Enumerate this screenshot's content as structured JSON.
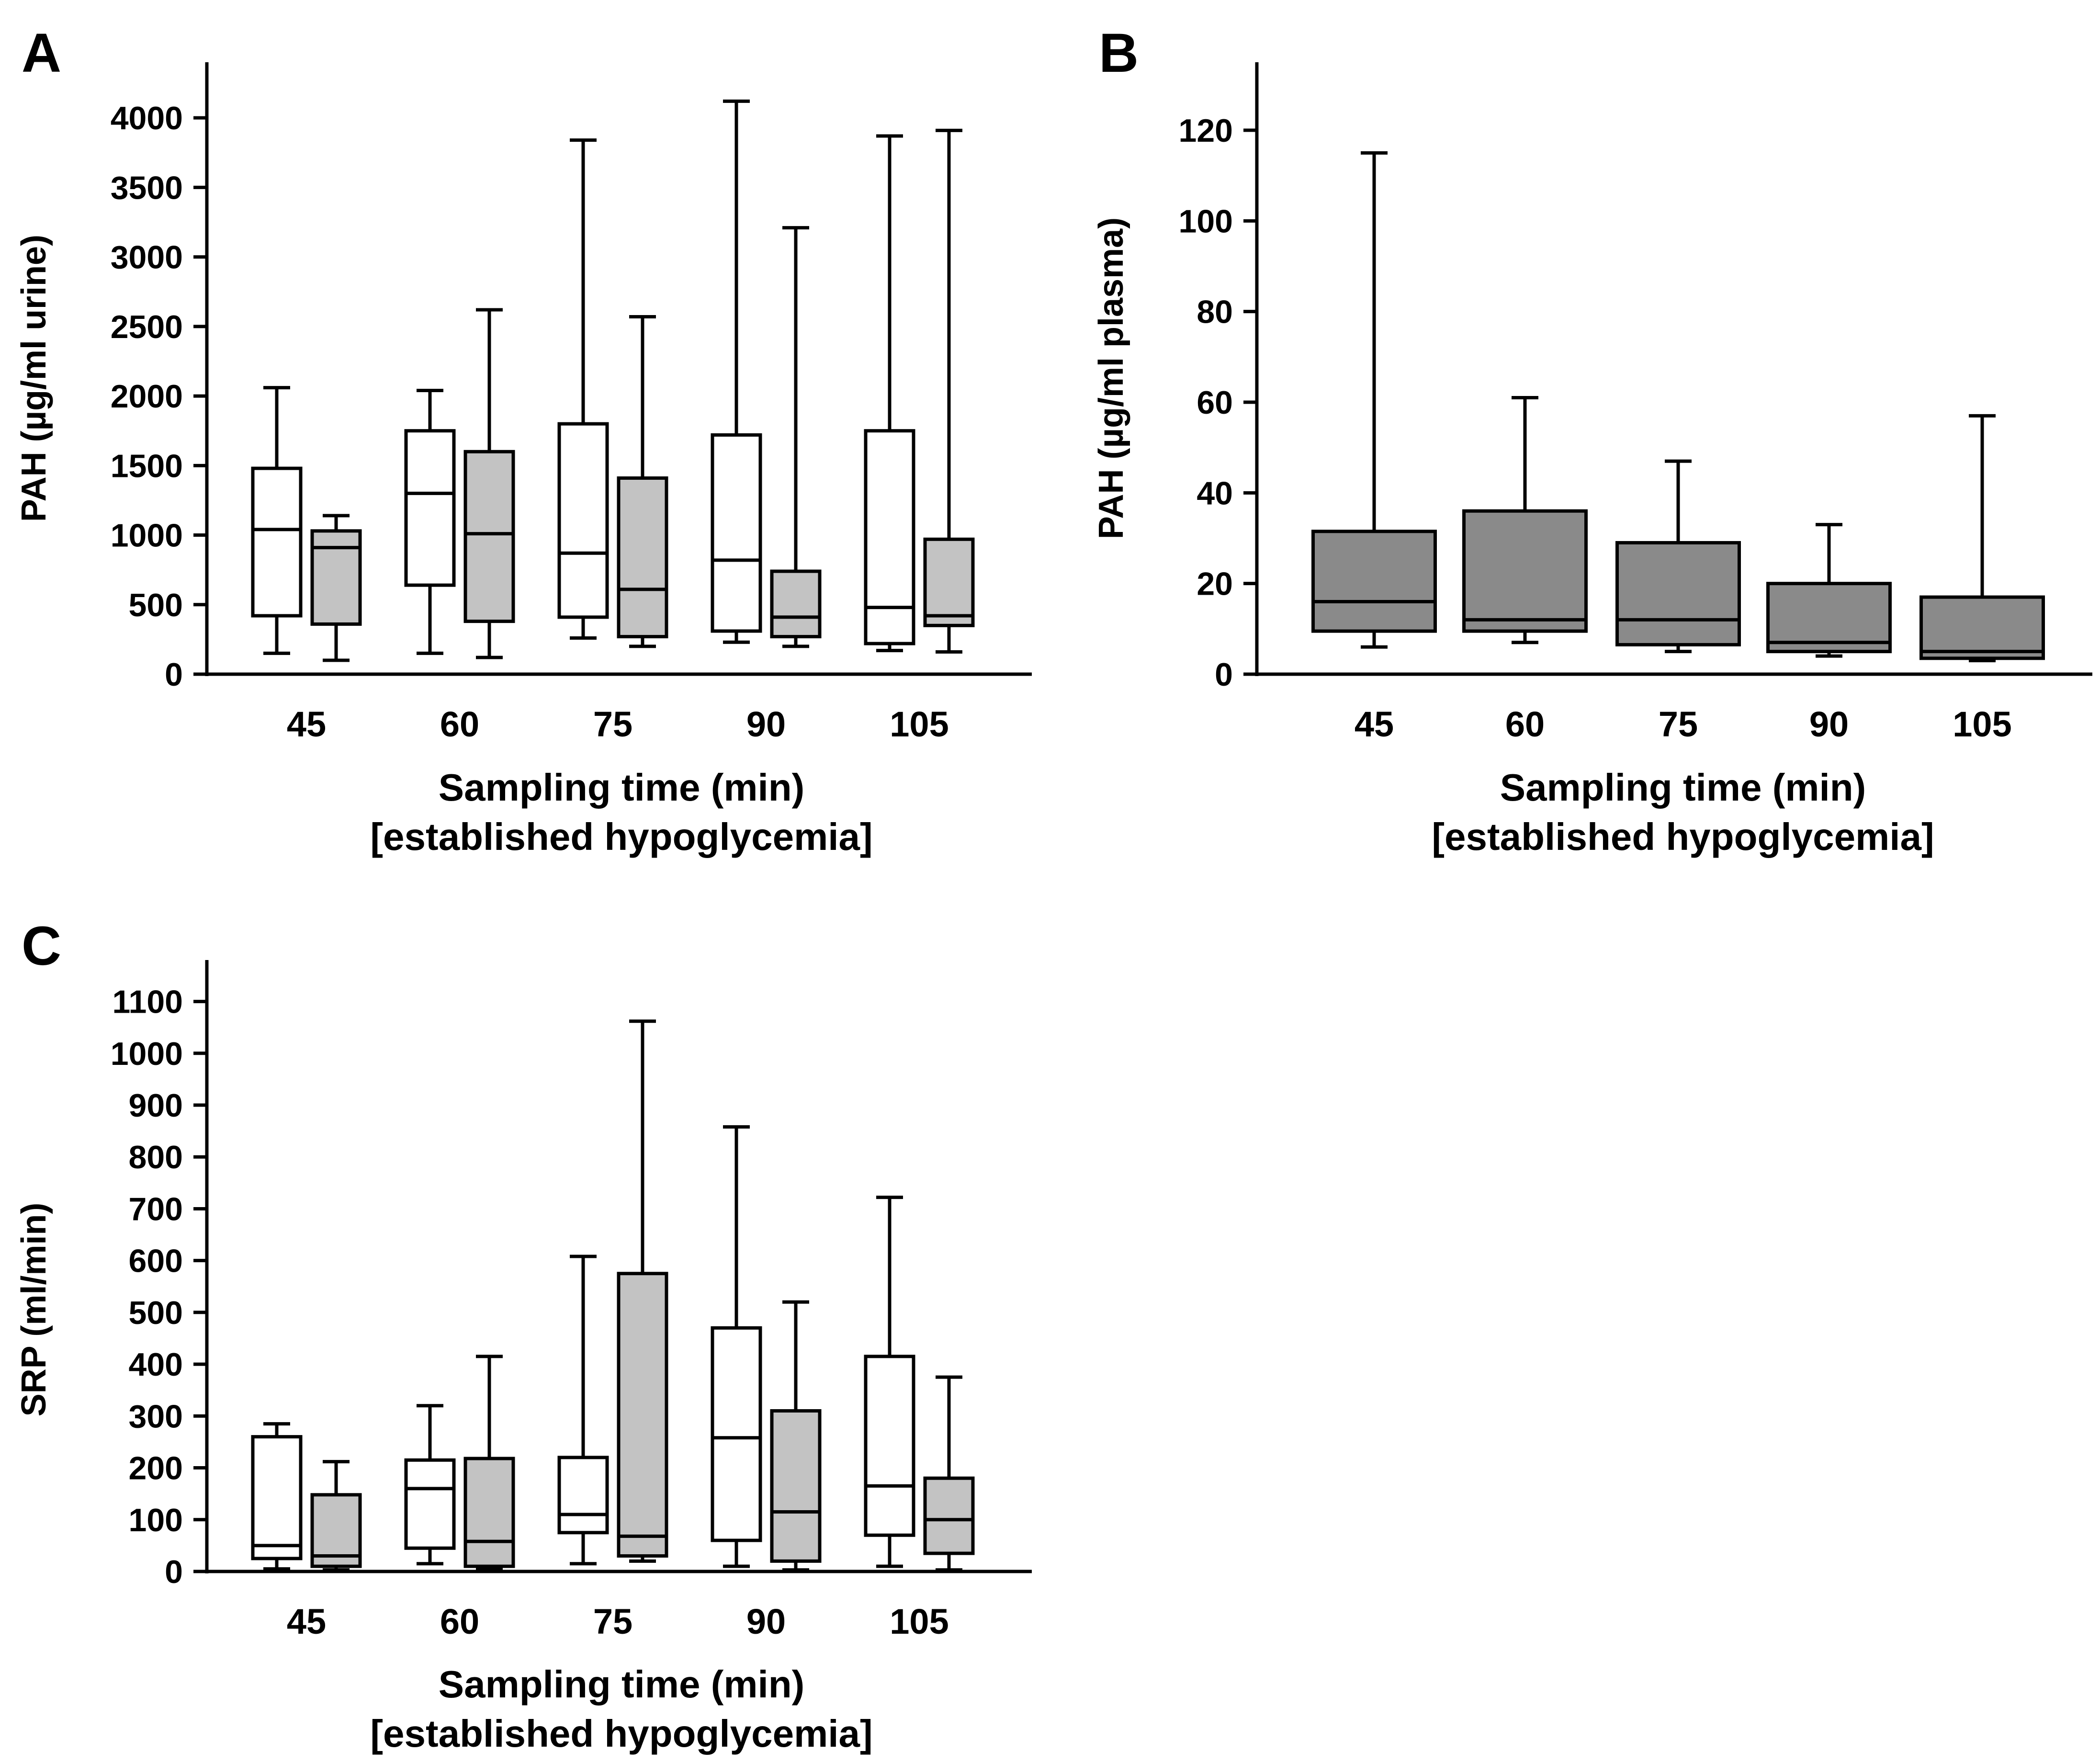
{
  "colors": {
    "box_white": "#ffffff",
    "box_light_gray": "#c3c3c3",
    "box_dark_gray": "#8a8a8a",
    "ink": "#000000"
  },
  "chart_data": [
    {
      "panel": "A",
      "type": "boxplot",
      "ylabel": "PAH (µg/ml urine)",
      "xlabel": "Sampling time (min)",
      "xlabel_line2": "[established hypoglycemia]",
      "categories": [
        "45",
        "60",
        "75",
        "90",
        "105"
      ],
      "ylim": [
        0,
        4400
      ],
      "yticks": [
        0,
        500,
        1000,
        1500,
        2000,
        2500,
        3000,
        3500,
        4000
      ],
      "series": [
        {
          "fill": "#ffffff",
          "boxes": [
            {
              "min": 150,
              "q1": 420,
              "median": 1040,
              "q3": 1480,
              "max": 2060
            },
            {
              "min": 150,
              "q1": 640,
              "median": 1300,
              "q3": 1750,
              "max": 2040
            },
            {
              "min": 260,
              "q1": 410,
              "median": 870,
              "q3": 1800,
              "max": 3840
            },
            {
              "min": 230,
              "q1": 310,
              "median": 820,
              "q3": 1720,
              "max": 4120
            },
            {
              "min": 170,
              "q1": 220,
              "median": 480,
              "q3": 1750,
              "max": 3870
            }
          ]
        },
        {
          "fill": "#c3c3c3",
          "boxes": [
            {
              "min": 100,
              "q1": 360,
              "median": 910,
              "q3": 1030,
              "max": 1140
            },
            {
              "min": 120,
              "q1": 380,
              "median": 1010,
              "q3": 1600,
              "max": 2620
            },
            {
              "min": 200,
              "q1": 270,
              "median": 610,
              "q3": 1410,
              "max": 2570
            },
            {
              "min": 200,
              "q1": 270,
              "median": 410,
              "q3": 740,
              "max": 3210
            },
            {
              "min": 160,
              "q1": 350,
              "median": 420,
              "q3": 970,
              "max": 3910
            }
          ]
        }
      ]
    },
    {
      "panel": "B",
      "type": "boxplot",
      "ylabel": "PAH (µg/ml plasma)",
      "xlabel": "Sampling time (min)",
      "xlabel_line2": "[established hypoglycemia]",
      "categories": [
        "45",
        "60",
        "75",
        "90",
        "105"
      ],
      "ylim": [
        0,
        135
      ],
      "yticks": [
        0,
        20,
        40,
        60,
        80,
        100,
        120
      ],
      "series": [
        {
          "fill": "#8a8a8a",
          "boxes": [
            {
              "min": 6,
              "q1": 9.5,
              "median": 16,
              "q3": 31.5,
              "max": 115
            },
            {
              "min": 7,
              "q1": 9.5,
              "median": 12,
              "q3": 36,
              "max": 61
            },
            {
              "min": 5,
              "q1": 6.5,
              "median": 12,
              "q3": 29,
              "max": 47
            },
            {
              "min": 4,
              "q1": 5,
              "median": 7,
              "q3": 20,
              "max": 33
            },
            {
              "min": 3,
              "q1": 3.5,
              "median": 5,
              "q3": 17,
              "max": 57
            }
          ]
        }
      ]
    },
    {
      "panel": "C",
      "type": "boxplot",
      "ylabel": "SRP (ml/min)",
      "xlabel": "Sampling time (min)",
      "xlabel_line2": "[established hypoglycemia]",
      "categories": [
        "45",
        "60",
        "75",
        "90",
        "105"
      ],
      "ylim": [
        0,
        1180
      ],
      "yticks": [
        0,
        100,
        200,
        300,
        400,
        500,
        600,
        700,
        800,
        900,
        1000,
        1100
      ],
      "series": [
        {
          "fill": "#ffffff",
          "boxes": [
            {
              "min": 5,
              "q1": 25,
              "median": 50,
              "q3": 260,
              "max": 285
            },
            {
              "min": 15,
              "q1": 45,
              "median": 160,
              "q3": 215,
              "max": 320
            },
            {
              "min": 15,
              "q1": 75,
              "median": 110,
              "q3": 220,
              "max": 608
            },
            {
              "min": 10,
              "q1": 60,
              "median": 258,
              "q3": 470,
              "max": 858
            },
            {
              "min": 10,
              "q1": 70,
              "median": 165,
              "q3": 415,
              "max": 722
            }
          ]
        },
        {
          "fill": "#c3c3c3",
          "boxes": [
            {
              "min": 3,
              "q1": 10,
              "median": 30,
              "q3": 148,
              "max": 212
            },
            {
              "min": 5,
              "q1": 10,
              "median": 58,
              "q3": 218,
              "max": 415
            },
            {
              "min": 20,
              "q1": 30,
              "median": 68,
              "q3": 575,
              "max": 1062
            },
            {
              "min": 3,
              "q1": 20,
              "median": 115,
              "q3": 310,
              "max": 520
            },
            {
              "min": 3,
              "q1": 35,
              "median": 100,
              "q3": 180,
              "max": 375
            }
          ]
        }
      ]
    }
  ]
}
